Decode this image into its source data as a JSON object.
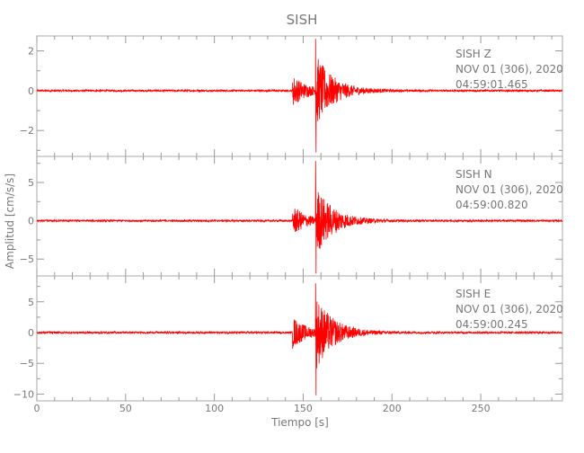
{
  "chart_data": {
    "type": "line",
    "title": "SISH",
    "xlabel": "Tiempo [s]",
    "ylabel": "Amplitud [cm/s/s]",
    "xlim": [
      0,
      296
    ],
    "xticks": [
      0,
      50,
      100,
      150,
      200,
      250
    ],
    "grid": false,
    "colors": {
      "trace": "#ff0000",
      "axes": "#aaaaaa",
      "text": "#777777"
    },
    "panels": [
      {
        "station": "SISH",
        "component": "Z",
        "date": "NOV 01 (306), 2020",
        "time": "04:59:01.465",
        "ylim": [
          -3.3,
          2.75
        ],
        "yticks": [
          2,
          0,
          -2
        ],
        "p_arrival_s": 144,
        "s_arrival_s": 157,
        "peak_max": 2.6,
        "peak_min": -3.1
      },
      {
        "station": "SISH",
        "component": "N",
        "date": "NOV 01 (306), 2020",
        "time": "04:59:00.820",
        "ylim": [
          -7.2,
          8.4
        ],
        "yticks": [
          5,
          0,
          -5
        ],
        "p_arrival_s": 144,
        "s_arrival_s": 157,
        "peak_max": 7.8,
        "peak_min": -6.9
      },
      {
        "station": "SISH",
        "component": "E",
        "date": "NOV 01 (306), 2020",
        "time": "04:59:00.245",
        "ylim": [
          -11.1,
          9.2
        ],
        "yticks": [
          5,
          0,
          -5,
          -10
        ],
        "p_arrival_s": 144,
        "s_arrival_s": 157,
        "peak_max": 8.0,
        "peak_min": -10.2
      }
    ]
  }
}
